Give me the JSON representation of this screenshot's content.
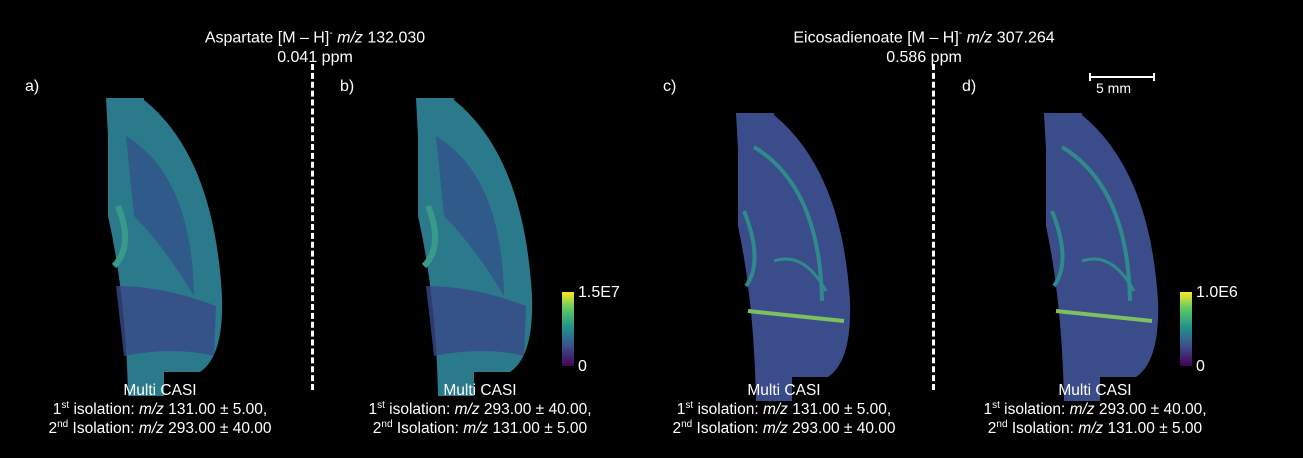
{
  "titles": [
    {
      "compound": "Aspartate [M – H]",
      "sup": "-",
      "mz_label": "m/z",
      "mz_value": "132.030",
      "ppm": "0.041 ppm"
    },
    {
      "compound": "Eicosadienoate [M – H]",
      "sup": "-",
      "mz_label": "m/z",
      "mz_value": "307.264",
      "ppm": "0.586 ppm"
    }
  ],
  "panels": [
    {
      "label": "a)",
      "method": "Multi CASI",
      "iso1": {
        "ord": "1",
        "sup": "st",
        "text": " isolation: ",
        "mz": "m/z",
        "value": " 131.00 ± 5.00,"
      },
      "iso2": {
        "ord": "2",
        "sup": "nd",
        "text": " Isolation: ",
        "mz": "m/z",
        "value": " 293.00 ± 40.00"
      }
    },
    {
      "label": "b)",
      "method": "Multi CASI",
      "iso1": {
        "ord": "1",
        "sup": "st",
        "text": " isolation: ",
        "mz": "m/z",
        "value": " 293.00 ± 40.00,"
      },
      "iso2": {
        "ord": "2",
        "sup": "nd",
        "text": " Isolation: ",
        "mz": "m/z",
        "value": " 131.00 ± 5.00"
      }
    },
    {
      "label": "c)",
      "method": "Multi CASI",
      "iso1": {
        "ord": "1",
        "sup": "st",
        "text": " isolation: ",
        "mz": "m/z",
        "value": " 131.00 ± 5.00,"
      },
      "iso2": {
        "ord": "2",
        "sup": "nd",
        "text": " Isolation: ",
        "mz": "m/z",
        "value": " 293.00 ± 40.00"
      }
    },
    {
      "label": "d)",
      "method": "Multi CASI",
      "iso1": {
        "ord": "1",
        "sup": "st",
        "text": " isolation: ",
        "mz": "m/z",
        "value": " 293.00 ± 40.00,"
      },
      "iso2": {
        "ord": "2",
        "sup": "nd",
        "text": " Isolation: ",
        "mz": "m/z",
        "value": " 131.00 ± 5.00"
      }
    }
  ],
  "colorbars": [
    {
      "max": "1.5E7",
      "min": "0"
    },
    {
      "max": "1.0E6",
      "min": "0"
    }
  ],
  "scalebar": {
    "label": "5 mm"
  },
  "colors": {
    "background": "#000000",
    "text": "#ffffff",
    "colormap": "viridis"
  }
}
